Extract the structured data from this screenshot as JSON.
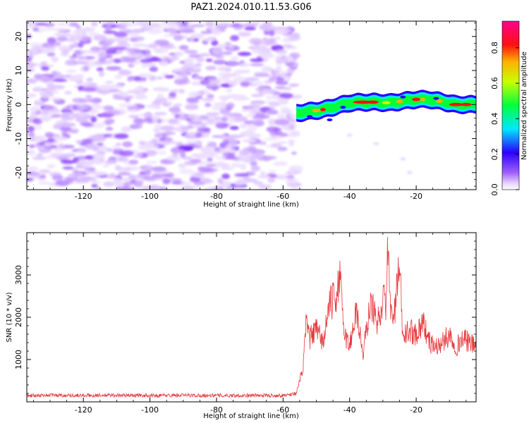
{
  "title": "PAZ1.2024.010.11.53.G06",
  "chart_data": [
    {
      "type": "heatmap",
      "xlabel": "Height of straight line (km)",
      "ylabel": "Frequency (Hz)",
      "xlim": [
        -137,
        -2
      ],
      "ylim": [
        -25,
        24.5
      ],
      "xticks": [
        -120,
        -100,
        -80,
        -60,
        -40,
        -20
      ],
      "yticks": [
        -20,
        -10,
        0,
        10,
        20
      ],
      "colorbar": {
        "label": "Normalized spectral amplitude",
        "range": [
          0,
          0.95
        ],
        "ticks": [
          "0.0",
          "0.2",
          "0.4",
          "0.6",
          "0.8"
        ],
        "colormap": "gist_rainbow (purple → blue → cyan → green → yellow → red → magenta)"
      },
      "description_points": {
        "noise_region_x": [
          -137,
          -56
        ],
        "signal_ridge": {
          "x": [
            -56,
            -52,
            -48,
            -44,
            -40,
            -36,
            -32,
            -28,
            -24,
            -20,
            -16,
            -12,
            -8,
            -4,
            -2
          ],
          "freq_hz": [
            -2.5,
            -2.0,
            -1.5,
            -0.5,
            0.5,
            0.7,
            0.7,
            0.5,
            1.0,
            1.5,
            1.5,
            0.8,
            0.0,
            0.0,
            0.0
          ],
          "amplitude": [
            0.35,
            0.5,
            0.6,
            0.7,
            0.8,
            0.9,
            0.85,
            0.8,
            0.85,
            0.9,
            0.85,
            0.8,
            0.9,
            0.85,
            0.7
          ]
        }
      }
    },
    {
      "type": "line",
      "xlabel": "Height of straight line (km)",
      "ylabel": "SNR (10 * v/v)",
      "xlim": [
        -137,
        -2
      ],
      "ylim": [
        0,
        4000
      ],
      "xticks": [
        -120,
        -100,
        -80,
        -60,
        -40,
        -20
      ],
      "yticks": [
        1000,
        2000,
        3000
      ],
      "color": "#e8383d",
      "series": [
        {
          "x": [
            -137,
            -130,
            -120,
            -110,
            -100,
            -90,
            -80,
            -70,
            -60,
            -56,
            -54,
            -53,
            -52,
            -50,
            -48,
            -46,
            -44,
            -43,
            -42,
            -41,
            -40,
            -38,
            -36,
            -34,
            -33,
            -32,
            -30,
            -29,
            -28.5,
            -28,
            -27,
            -26,
            -25,
            -24,
            -22,
            -20,
            -18,
            -16,
            -14,
            -12,
            -10,
            -8,
            -6,
            -4,
            -2
          ],
          "values": [
            150,
            160,
            150,
            155,
            150,
            155,
            150,
            150,
            150,
            200,
            800,
            1900,
            1500,
            1700,
            1400,
            2300,
            2500,
            3000,
            1900,
            1500,
            1300,
            2200,
            1100,
            2200,
            2300,
            1800,
            2400,
            2300,
            3900,
            2600,
            1800,
            2500,
            3200,
            1500,
            1700,
            1600,
            1900,
            1400,
            1300,
            1400,
            1600,
            1300,
            1500,
            1400,
            1300
          ]
        }
      ]
    }
  ]
}
